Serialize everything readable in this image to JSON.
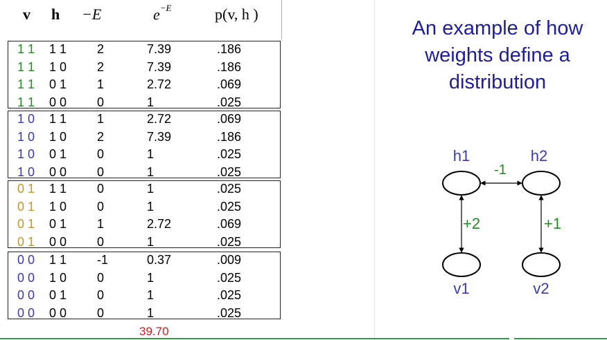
{
  "slide": {
    "title": "An example of how weights define a distribution"
  },
  "table": {
    "headers": {
      "v": "v",
      "h": "h",
      "neg_e": "−E",
      "exp_base": "e",
      "exp_sup": "−E",
      "prob": "p(v, h )"
    },
    "groups": [
      {
        "color": "#1f8c1f",
        "rows": [
          {
            "v": "1 1",
            "h": "1 1",
            "neg_e": "2",
            "exp": "7.39",
            "p": ".186"
          },
          {
            "v": "1 1",
            "h": "1 0",
            "neg_e": "2",
            "exp": "7.39",
            "p": ".186"
          },
          {
            "v": "1 1",
            "h": "0 1",
            "neg_e": "1",
            "exp": "2.72",
            "p": ".069"
          },
          {
            "v": "1 1",
            "h": "0 0",
            "neg_e": "0",
            "exp": "1",
            "p": ".025"
          }
        ]
      },
      {
        "color": "#3a3ab0",
        "rows": [
          {
            "v": "1 0",
            "h": "1 1",
            "neg_e": "1",
            "exp": "2.72",
            "p": ".069"
          },
          {
            "v": "1 0",
            "h": "1 0",
            "neg_e": "2",
            "exp": "7.39",
            "p": ".186"
          },
          {
            "v": "1 0",
            "h": "0 1",
            "neg_e": "0",
            "exp": "1",
            "p": ".025"
          },
          {
            "v": "1 0",
            "h": "0 0",
            "neg_e": "0",
            "exp": "1",
            "p": ".025"
          }
        ]
      },
      {
        "color": "#c8961e",
        "rows": [
          {
            "v": "0 1",
            "h": "1 1",
            "neg_e": "0",
            "exp": "1",
            "p": ".025"
          },
          {
            "v": "0 1",
            "h": "1 0",
            "neg_e": "0",
            "exp": "1",
            "p": ".025"
          },
          {
            "v": "0 1",
            "h": "0 1",
            "neg_e": "1",
            "exp": "2.72",
            "p": ".069"
          },
          {
            "v": "0 1",
            "h": "0 0",
            "neg_e": "0",
            "exp": "1",
            "p": ".025"
          }
        ]
      },
      {
        "color": "#3a3ab0",
        "rows": [
          {
            "v": "0 0",
            "h": "1 1",
            "neg_e": "-1",
            "exp": "0.37",
            "p": ".009"
          },
          {
            "v": "0 0",
            "h": "1 0",
            "neg_e": "0",
            "exp": "1",
            "p": ".025"
          },
          {
            "v": "0 0",
            "h": "0 1",
            "neg_e": "0",
            "exp": "1",
            "p": ".025"
          },
          {
            "v": "0 0",
            "h": "0 0",
            "neg_e": "0",
            "exp": "1",
            "p": ".025"
          }
        ]
      }
    ],
    "total": "39.70"
  },
  "network": {
    "nodes": {
      "h1": "h1",
      "h2": "h2",
      "v1": "v1",
      "v2": "v2"
    },
    "weights": {
      "h1_h2": "-1",
      "h1_v1": "+2",
      "h2_v2": "+1"
    },
    "colors": {
      "node_label": "#3a3ab0",
      "weight_label": "#1f8c1f"
    }
  }
}
